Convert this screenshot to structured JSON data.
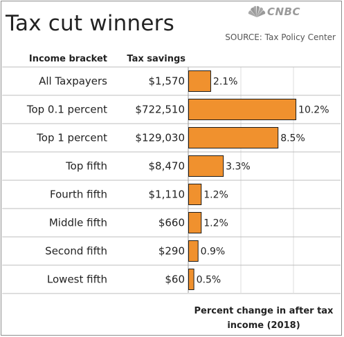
{
  "header": {
    "title": "Tax cut winners",
    "brand": "CNBC",
    "source": "SOURCE: Tax Policy Center"
  },
  "columns": {
    "bracket": "Income bracket",
    "savings": "Tax savings"
  },
  "footnote": "Percent change in after tax income (2018)",
  "colors": {
    "bar_fill": "#F0912E",
    "bar_stroke": "#1a1a1a",
    "row_separator": "#bdbdbd",
    "grid": "#dcdcdc"
  },
  "chart_data": {
    "type": "bar",
    "orientation": "horizontal",
    "categories": [
      "All Taxpayers",
      "Top 0.1 percent",
      "Top 1 percent",
      "Top fifth",
      "Fourth fifth",
      "Middle fifth",
      "Second fifth",
      "Lowest fifth"
    ],
    "tax_savings": [
      "$1,570",
      "$722,510",
      "$129,030",
      "$8,470",
      "$1,110",
      "$660",
      "$290",
      "$60"
    ],
    "values": [
      2.1,
      10.2,
      8.5,
      3.3,
      1.2,
      1.2,
      0.9,
      0.5
    ],
    "value_labels": [
      "2.1%",
      "10.2%",
      "8.5%",
      "3.3%",
      "1.2%",
      "1.2%",
      "0.9%",
      "0.5%"
    ],
    "xlim": [
      0,
      12
    ],
    "grid": true
  }
}
